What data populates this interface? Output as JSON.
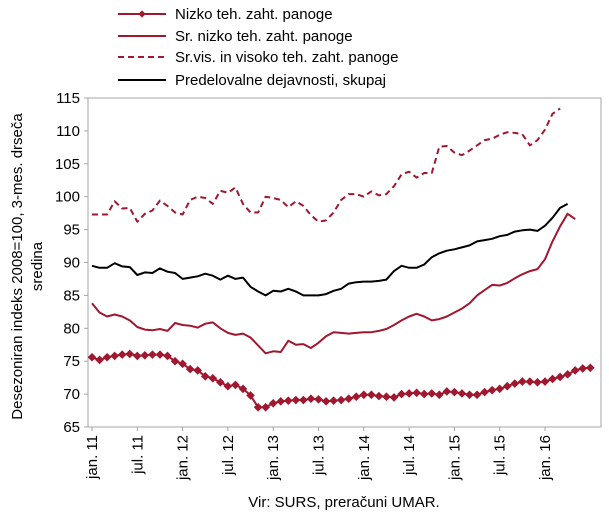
{
  "chart_data": {
    "type": "line",
    "ylabel_lines": [
      "Desezoniran indeks 2008=100, 3-mes. drseča",
      "sredina"
    ],
    "source": "Vir: SURS, preračuni UMAR.",
    "ylim": [
      65,
      115
    ],
    "yticks": [
      "65",
      "70",
      "75",
      "80",
      "85",
      "90",
      "95",
      "100",
      "105",
      "110",
      "115"
    ],
    "x_start": "2011-01",
    "xticks": [
      "jan. 11",
      "jul. 11",
      "jan. 12",
      "jul. 12",
      "jan. 13",
      "jul. 13",
      "jan. 14",
      "jul. 14",
      "jan. 15",
      "jul. 15",
      "jan. 16"
    ],
    "grid": false,
    "legend_position": "top",
    "series": [
      {
        "name": "Nizko teh. zaht. panoge",
        "color": "#a0182f",
        "style": "solid-diamond",
        "values": [
          75.6,
          75.2,
          75.6,
          75.8,
          76.0,
          76.1,
          75.8,
          75.9,
          76.0,
          76.0,
          75.8,
          75.0,
          74.6,
          73.8,
          73.6,
          72.7,
          72.4,
          71.8,
          71.2,
          71.4,
          70.8,
          69.8,
          68.0,
          68.0,
          68.6,
          68.9,
          69.0,
          69.1,
          69.1,
          69.3,
          69.2,
          68.9,
          69.0,
          69.1,
          69.3,
          69.6,
          69.9,
          69.9,
          69.7,
          69.6,
          69.5,
          70.0,
          70.1,
          70.2,
          70.0,
          70.1,
          69.9,
          70.4,
          70.3,
          70.1,
          69.9,
          69.9,
          70.3,
          70.6,
          70.8,
          71.2,
          71.6,
          71.9,
          71.9,
          71.8,
          71.9,
          72.3,
          72.6,
          73.0,
          73.6,
          73.9,
          74.0
        ]
      },
      {
        "name": "Sr. nizko teh. zaht. panoge",
        "color": "#a0182f",
        "style": "solid",
        "values": [
          83.8,
          82.4,
          81.8,
          82.1,
          81.8,
          81.2,
          80.2,
          79.8,
          79.7,
          79.9,
          79.6,
          80.8,
          80.5,
          80.4,
          80.1,
          80.7,
          80.9,
          80.0,
          79.3,
          79.0,
          79.2,
          78.6,
          77.4,
          76.2,
          76.5,
          76.4,
          78.1,
          77.5,
          77.6,
          77.0,
          77.8,
          78.8,
          79.4,
          79.3,
          79.2,
          79.3,
          79.4,
          79.4,
          79.6,
          79.9,
          80.5,
          81.2,
          81.8,
          82.2,
          81.8,
          81.2,
          81.4,
          81.8,
          82.4,
          83.0,
          83.8,
          85.0,
          85.8,
          86.6,
          86.5,
          86.9,
          87.6,
          88.2,
          88.7,
          89.0,
          90.5,
          93.2,
          95.5,
          97.4,
          96.6
        ]
      },
      {
        "name": "Sr.vis. in visoko teh. zaht. panoge",
        "color": "#a0182f",
        "style": "dashed",
        "values": [
          97.3,
          97.3,
          97.3,
          99.3,
          98.2,
          98.3,
          96.2,
          97.4,
          97.9,
          99.4,
          98.6,
          97.6,
          97.3,
          99.5,
          100.0,
          99.8,
          98.9,
          100.9,
          100.6,
          101.4,
          98.9,
          97.6,
          97.6,
          100.0,
          99.8,
          99.5,
          98.4,
          99.3,
          98.6,
          97.2,
          96.2,
          96.4,
          97.6,
          99.5,
          100.4,
          100.4,
          100.0,
          100.8,
          100.2,
          100.4,
          101.6,
          103.4,
          103.8,
          102.9,
          103.6,
          103.6,
          107.6,
          107.7,
          106.7,
          106.3,
          107.0,
          107.8,
          108.6,
          108.8,
          109.4,
          109.8,
          109.7,
          109.5,
          107.8,
          108.6,
          110.2,
          112.6,
          113.4
        ]
      },
      {
        "name": "Predelovalne dejavnosti, skupaj",
        "color": "#000000",
        "style": "solid",
        "values": [
          89.5,
          89.2,
          89.2,
          89.9,
          89.4,
          89.3,
          88.1,
          88.5,
          88.4,
          89.1,
          88.6,
          88.4,
          87.5,
          87.7,
          87.9,
          88.3,
          88.0,
          87.4,
          88.0,
          87.5,
          87.7,
          86.3,
          85.6,
          85.0,
          85.7,
          85.6,
          86.0,
          85.6,
          85.0,
          85.0,
          85.0,
          85.2,
          85.7,
          86.0,
          86.8,
          87.0,
          87.1,
          87.1,
          87.2,
          87.4,
          88.7,
          89.5,
          89.2,
          89.2,
          89.7,
          90.8,
          91.4,
          91.8,
          92.0,
          92.3,
          92.6,
          93.2,
          93.4,
          93.6,
          94.0,
          94.2,
          94.7,
          94.9,
          95.0,
          94.8,
          95.6,
          96.8,
          98.3,
          98.9
        ]
      }
    ]
  }
}
